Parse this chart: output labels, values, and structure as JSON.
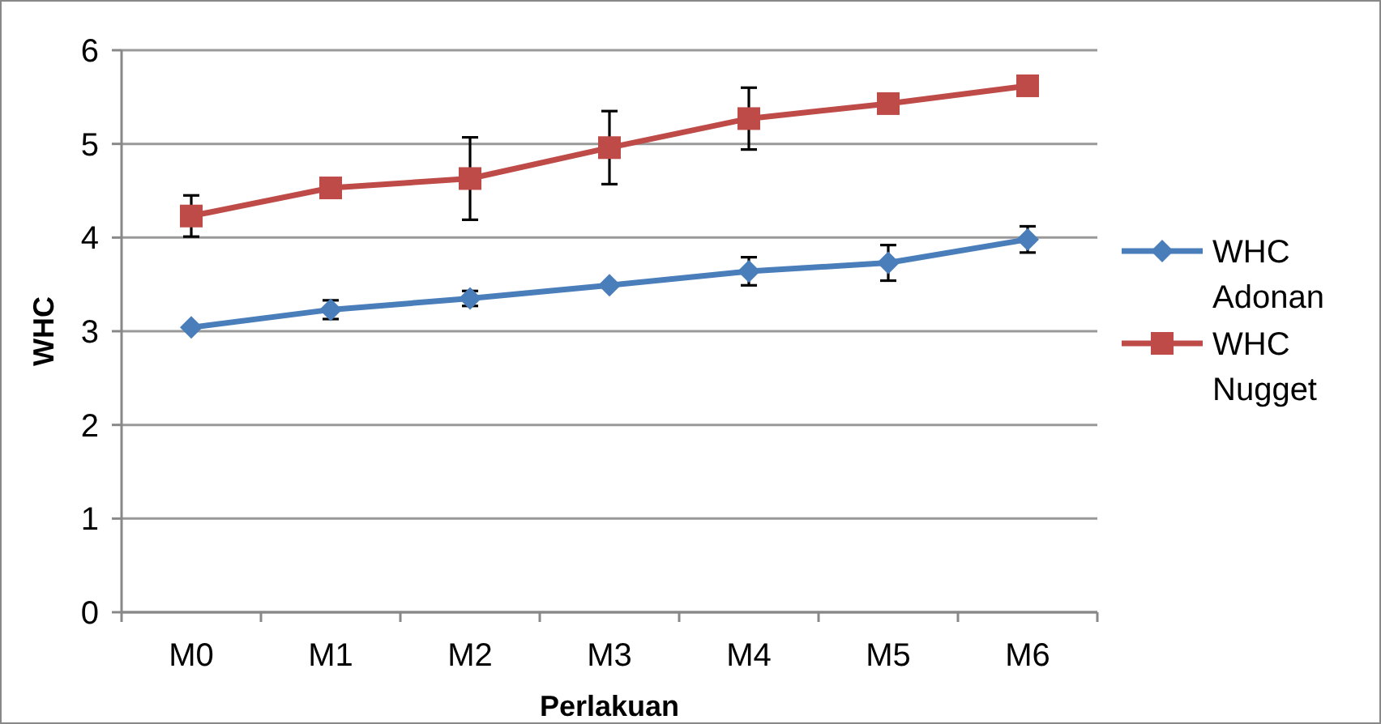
{
  "chart_data": {
    "type": "line",
    "xlabel": "Perlakuan",
    "ylabel": "WHC",
    "categories": [
      "M0",
      "M1",
      "M2",
      "M3",
      "M4",
      "M5",
      "M6"
    ],
    "series": [
      {
        "name": "WHC Adonan",
        "color": "#4a7ebb",
        "marker": "diamond",
        "values": [
          3.04,
          3.23,
          3.35,
          3.49,
          3.64,
          3.73,
          3.98
        ],
        "errors": [
          null,
          0.1,
          0.08,
          null,
          0.15,
          0.19,
          0.14
        ]
      },
      {
        "name": "WHC Nugget",
        "color": "#be4b48",
        "marker": "square",
        "values": [
          4.23,
          4.53,
          4.63,
          4.96,
          5.27,
          5.43,
          5.62
        ],
        "errors": [
          0.22,
          null,
          0.44,
          0.39,
          0.33,
          null,
          null
        ]
      }
    ],
    "ylim": [
      0,
      6
    ],
    "yticks": [
      0,
      1,
      2,
      3,
      4,
      5,
      6
    ],
    "grid": "y",
    "legend": "right"
  }
}
